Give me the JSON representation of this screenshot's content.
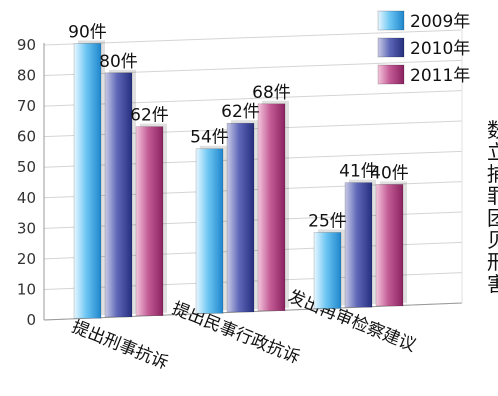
{
  "chart_data": {
    "type": "bar",
    "categories": [
      "提出刑事抗诉",
      "提出民事行政抗诉",
      "发出再审检察建议"
    ],
    "series": [
      {
        "name": "2009年",
        "values": [
          90,
          54,
          25
        ],
        "value_labels": [
          "90件",
          "54件",
          "25件"
        ],
        "color": "#3aa0e0"
      },
      {
        "name": "2010年",
        "values": [
          80,
          62,
          41
        ],
        "value_labels": [
          "80件",
          "62件",
          "41件"
        ],
        "color": "#3d4a9c"
      },
      {
        "name": "2011年",
        "values": [
          62,
          68,
          40
        ],
        "value_labels": [
          "62件",
          "68件",
          "40件"
        ],
        "color": "#b0407f"
      }
    ],
    "y_ticks": [
      "0",
      "10",
      "20",
      "30",
      "40",
      "50",
      "60",
      "70",
      "80",
      "90"
    ],
    "ylim": [
      0,
      90
    ],
    "grid": true,
    "legend_position": "top-right",
    "title": "",
    "xlabel": "",
    "ylabel": ""
  },
  "side_text": [
    "数",
    "立",
    "捕",
    "罪",
    "团",
    "贝",
    "刑",
    "害"
  ]
}
